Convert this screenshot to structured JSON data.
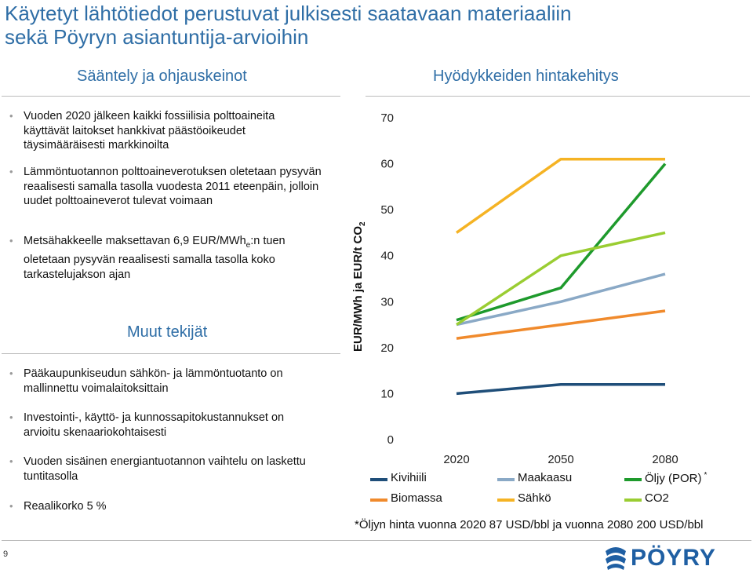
{
  "title": {
    "line1": "Käytetyt lähtötiedot perustuvat julkisesti saatavaan materiaaliin",
    "line2": "sekä Pöyryn asiantuntija-arvioihin"
  },
  "left": {
    "heading": "Sääntely ja ohjauskeinot",
    "bullets": [
      "Vuoden 2020 jälkeen kaikki fossiilisia polttoaineita käyttävät laitokset hankkivat päästöoikeudet täysimääräisesti markkinoilta",
      "Lämmöntuotannon polttoaineverotuksen oletetaan pysyvän reaalisesti samalla tasolla vuodesta 2011 eteenpäin, jolloin uudet polttoaineverot tulevat voimaan"
    ],
    "bullet3": {
      "pre": "Metsähakkeelle maksettavan 6,9 EUR/MWh",
      "sub": "e",
      "post": ":n tuen oletetaan pysyvän reaalisesti samalla tasolla koko tarkastelujakson ajan"
    },
    "heading2": "Muut tekijät",
    "bullets2": [
      "Pääkaupunkiseudun sähkön- ja lämmöntuotanto on mallinnettu voimalaitoksittain",
      "Investointi-, käyttö- ja kunnossapitokustannukset on arvioitu skenaariokohtaisesti",
      "Vuoden sisäinen energiantuotannon vaihtelu on laskettu tuntitasolla",
      "Reaalikorko 5 %"
    ]
  },
  "right": {
    "heading": "Hyödykkeiden hintakehitys"
  },
  "chart_data": {
    "type": "line",
    "x": [
      "2020",
      "2050",
      "2080"
    ],
    "ylabel": "EUR/MWh ja EUR/t CO",
    "ylabel_sub": "2",
    "ylim": [
      0,
      70
    ],
    "yticks": [
      0,
      10,
      20,
      30,
      40,
      50,
      60,
      70
    ],
    "grid": false,
    "legend_position": "bottom",
    "series": [
      {
        "name": "Kivihiili",
        "color": "#1f4e79",
        "values": [
          10,
          12,
          12
        ]
      },
      {
        "name": "Maakaasu",
        "color": "#8aa9c6",
        "values": [
          25,
          30,
          36
        ]
      },
      {
        "name": "Öljy (POR)",
        "name_sup": "*",
        "color": "#1e9a2c",
        "values": [
          26,
          33,
          60
        ]
      },
      {
        "name": "Biomassa",
        "color": "#f08a2c",
        "values": [
          22,
          25,
          28
        ]
      },
      {
        "name": "Sähkö",
        "color": "#f5b324",
        "values": [
          45,
          61,
          61
        ]
      },
      {
        "name": "CO2",
        "color": "#9acd32",
        "values": [
          25,
          40,
          45
        ]
      }
    ],
    "footnote": "*Öljyn hinta vuonna 2020 87 USD/bbl ja vuonna 2080 200 USD/bbl"
  },
  "page_number": "9",
  "logo_text": "PÖYRY"
}
